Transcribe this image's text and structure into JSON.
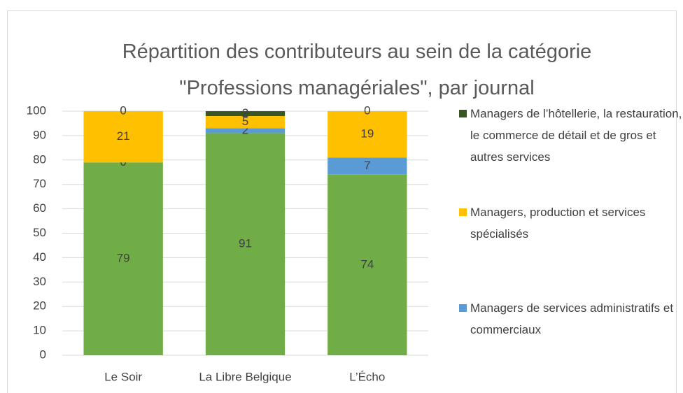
{
  "chart_data": {
    "type": "stacked_bar",
    "title": "Répartition des contributeurs au sein de la catégorie \"Professions managériales\", par journal",
    "categories": [
      "Le Soir",
      "La Libre Belgique",
      "L’Écho"
    ],
    "series": [
      {
        "color": "#70ad47",
        "values": [
          79,
          91,
          74
        ]
      },
      {
        "name": "Managers de services administratifs et commerciaux",
        "color": "#5b9bd5",
        "values": [
          0,
          2,
          7
        ]
      },
      {
        "name": "Managers,  production et services spécialisés",
        "color": "#ffc000",
        "values": [
          21,
          5,
          19
        ]
      },
      {
        "name": "Managers de l’hôtellerie, la restauration, le commerce de détail et de gros et autres services",
        "color": "#375623",
        "values": [
          0,
          2,
          0
        ]
      }
    ],
    "ylim": [
      0,
      100
    ],
    "yticks": [
      0,
      10,
      20,
      30,
      40,
      50,
      60,
      70,
      80,
      90,
      100
    ],
    "grid": true,
    "legend": "right"
  }
}
